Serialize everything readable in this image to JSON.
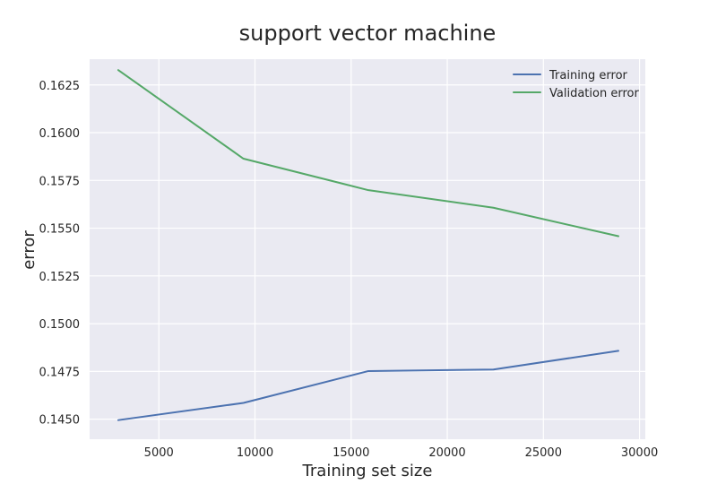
{
  "chart_data": {
    "type": "line",
    "title": "support vector machine",
    "xlabel": "Training set size",
    "ylabel": "error",
    "xlim": [
      1400,
      30300
    ],
    "ylim": [
      0.14395,
      0.16385
    ],
    "xticks": [
      5000,
      10000,
      15000,
      20000,
      25000,
      30000
    ],
    "xtick_labels": [
      "5000",
      "10000",
      "15000",
      "20000",
      "25000",
      "30000"
    ],
    "yticks": [
      0.145,
      0.1475,
      0.15,
      0.1525,
      0.155,
      0.1575,
      0.16,
      0.1625
    ],
    "ytick_labels": [
      "0.1450",
      "0.1475",
      "0.1500",
      "0.1525",
      "0.1550",
      "0.1575",
      "0.1600",
      "0.1625"
    ],
    "grid": true,
    "legend_position": "top-right",
    "x": [
      2890,
      9400,
      15900,
      22400,
      28900
    ],
    "series": [
      {
        "name": "Training error",
        "color": "#4c72b0",
        "values": [
          0.14495,
          0.14585,
          0.14752,
          0.1476,
          0.14858
        ]
      },
      {
        "name": "Validation error",
        "color": "#55a868",
        "values": [
          0.16328,
          0.15864,
          0.15699,
          0.15607,
          0.15458
        ]
      }
    ],
    "colors": {
      "plot_background": "#eaeaf2",
      "grid": "#ffffff",
      "text": "#262626"
    }
  }
}
